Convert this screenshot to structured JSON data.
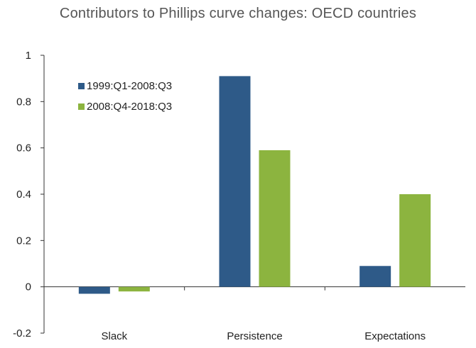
{
  "chart_data": {
    "type": "bar",
    "title": "Contributors to Phillips curve changes: OECD countries",
    "xlabel": "",
    "ylabel": "",
    "categories": [
      "Slack",
      "Persistence",
      "Expectations"
    ],
    "series": [
      {
        "name": "1999:Q1-2008:Q3",
        "color": "#2e5a88",
        "values": [
          -0.03,
          0.91,
          0.09
        ]
      },
      {
        "name": "2008:Q4-2018:Q3",
        "color": "#8cb43f",
        "values": [
          -0.02,
          0.59,
          0.4
        ]
      }
    ],
    "ylim": [
      -0.2,
      1
    ],
    "yticks": [
      -0.2,
      0,
      0.2,
      0.4,
      0.6,
      0.8,
      1
    ],
    "ytick_labels": [
      "-0.2",
      "0",
      "0.2",
      "0.4",
      "0.6",
      "0.8",
      "1"
    ],
    "grid": false,
    "legend_position": "top-left"
  }
}
